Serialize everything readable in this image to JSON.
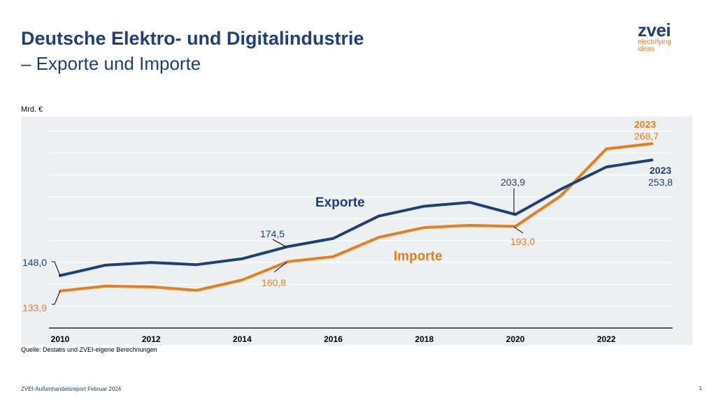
{
  "title_line1": "Deutsche Elektro- und Digitalindustrie",
  "title_line2": "– Exporte und Importe",
  "logo": {
    "name": "zvei",
    "tagline1": "electrifying",
    "tagline2": "ideas"
  },
  "source": "Quelle: Destatis und ZVEI-eigene Berechnungen",
  "footer": "ZVEI-Außenhandelsreport Februar 2024",
  "page_number": "1",
  "colors": {
    "exports": "#1d3f7a",
    "imports": "#e87d1e",
    "background": "#edf0f1"
  },
  "chart_data": {
    "type": "line",
    "ylabel": "Mrd. €",
    "ylim": [
      100,
      280
    ],
    "gridlines": [
      120,
      140,
      160,
      180,
      200,
      220,
      240,
      260,
      280
    ],
    "x": [
      2010,
      2011,
      2012,
      2013,
      2014,
      2015,
      2016,
      2017,
      2018,
      2019,
      2020,
      2021,
      2022,
      2023
    ],
    "xticks": [
      "2010",
      "2012",
      "2014",
      "2016",
      "2018",
      "2020",
      "2022"
    ],
    "series": [
      {
        "name": "Exporte",
        "values": [
          148.0,
          157.6,
          160.0,
          158.0,
          163.4,
          174.5,
          182.0,
          202.5,
          211.5,
          215.0,
          203.9,
          227.0,
          247.4,
          253.8
        ]
      },
      {
        "name": "Importe",
        "values": [
          133.9,
          138.4,
          137.7,
          134.5,
          144.0,
          160.8,
          165.3,
          183.0,
          192.0,
          194.0,
          193.0,
          221.0,
          264.0,
          268.7
        ]
      }
    ],
    "annotations": {
      "exp_2010": "148,0",
      "imp_2010": "133,9",
      "exp_2015": "174,5",
      "imp_2015": "160,8",
      "exp_2020": "203,9",
      "imp_2020": "193,0",
      "exp_2023_year": "2023",
      "exp_2023": "253,8",
      "imp_2023_year": "2023",
      "imp_2023": "268,7"
    }
  }
}
